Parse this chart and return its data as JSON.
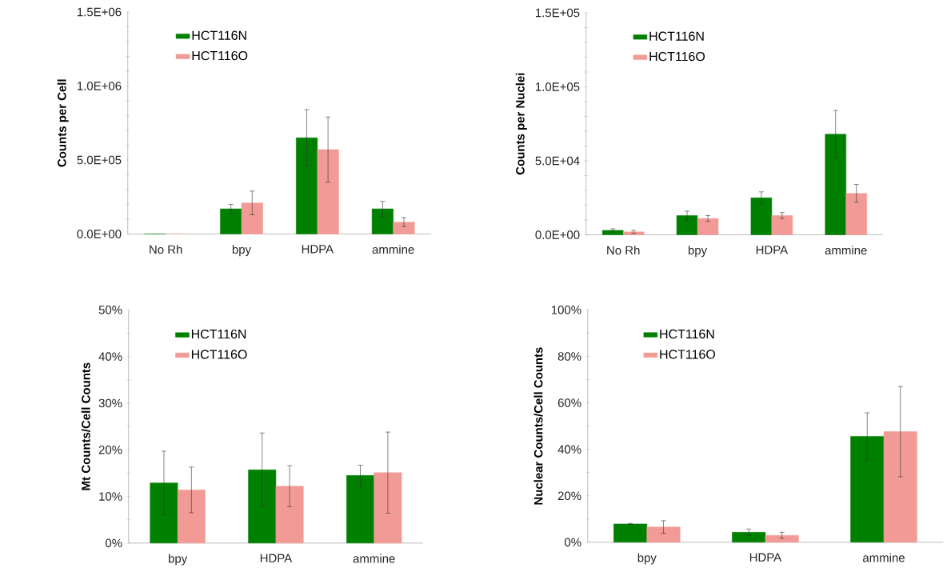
{
  "chart_data": [
    {
      "type": "bar",
      "ylabel": "Counts per Cell",
      "categories": [
        "No Rh",
        "bpy",
        "HDPA",
        "ammine"
      ],
      "series": [
        {
          "name": "HCT116N",
          "color": "#008000",
          "values": [
            0,
            170000,
            650000,
            170000
          ],
          "errors": [
            null,
            30000,
            190000,
            50000
          ]
        },
        {
          "name": "HCT116O",
          "color": "#f29b96",
          "values": [
            0,
            210000,
            570000,
            80000
          ],
          "errors": [
            null,
            80000,
            220000,
            30000
          ]
        }
      ],
      "ylim": [
        0,
        1500000
      ],
      "yticks": [
        {
          "value": 0,
          "label": "0.0E+00"
        },
        {
          "value": 100000,
          "label": null
        },
        {
          "value": 200000,
          "label": null
        },
        {
          "value": 300000,
          "label": null
        },
        {
          "value": 400000,
          "label": null
        },
        {
          "value": 500000,
          "label": "5.0E+05"
        },
        {
          "value": 600000,
          "label": null
        },
        {
          "value": 700000,
          "label": null
        },
        {
          "value": 800000,
          "label": null
        },
        {
          "value": 900000,
          "label": null
        },
        {
          "value": 1000000,
          "label": "1.0E+06"
        },
        {
          "value": 1100000,
          "label": null
        },
        {
          "value": 1200000,
          "label": null
        },
        {
          "value": 1300000,
          "label": null
        },
        {
          "value": 1400000,
          "label": null
        },
        {
          "value": 1500000,
          "label": "1.5E+06"
        }
      ],
      "legend": "top left"
    },
    {
      "type": "bar",
      "ylabel": "Counts per Nuclei",
      "categories": [
        "No Rh",
        "bpy",
        "HDPA",
        "ammine"
      ],
      "series": [
        {
          "name": "HCT116N",
          "color": "#008000",
          "values": [
            3000,
            13000,
            25000,
            68000
          ],
          "errors": [
            1000,
            3000,
            4000,
            16000
          ]
        },
        {
          "name": "HCT116O",
          "color": "#f29b96",
          "values": [
            2000,
            11000,
            13000,
            28000
          ],
          "errors": [
            1000,
            2000,
            2000,
            6000
          ]
        }
      ],
      "ylim": [
        0,
        150000
      ],
      "yticks": [
        {
          "value": 0,
          "label": "0.0E+00"
        },
        {
          "value": 10000,
          "label": null
        },
        {
          "value": 20000,
          "label": null
        },
        {
          "value": 30000,
          "label": null
        },
        {
          "value": 40000,
          "label": null
        },
        {
          "value": 50000,
          "label": "5.0E+04"
        },
        {
          "value": 60000,
          "label": null
        },
        {
          "value": 70000,
          "label": null
        },
        {
          "value": 80000,
          "label": null
        },
        {
          "value": 90000,
          "label": null
        },
        {
          "value": 100000,
          "label": "1.0E+05"
        },
        {
          "value": 110000,
          "label": null
        },
        {
          "value": 120000,
          "label": null
        },
        {
          "value": 130000,
          "label": null
        },
        {
          "value": 140000,
          "label": null
        },
        {
          "value": 150000,
          "label": "1.5E+05"
        }
      ],
      "legend": "top left"
    },
    {
      "type": "bar",
      "ylabel": "Mt Counts/Cell Counts",
      "categories": [
        "bpy",
        "HDPA",
        "ammine"
      ],
      "series": [
        {
          "name": "HCT116N",
          "color": "#008000",
          "values": [
            12.9,
            15.7,
            14.5
          ],
          "errors": [
            6.8,
            7.9,
            2.2
          ]
        },
        {
          "name": "HCT116O",
          "color": "#f29b96",
          "values": [
            11.4,
            12.2,
            15.1
          ],
          "errors": [
            4.9,
            4.4,
            8.7
          ]
        }
      ],
      "ylim": [
        0,
        50
      ],
      "yticks": [
        {
          "value": 0,
          "label": "0%"
        },
        {
          "value": 5,
          "label": null
        },
        {
          "value": 10,
          "label": "10%"
        },
        {
          "value": 15,
          "label": null
        },
        {
          "value": 20,
          "label": "20%"
        },
        {
          "value": 25,
          "label": null
        },
        {
          "value": 30,
          "label": "30%"
        },
        {
          "value": 35,
          "label": null
        },
        {
          "value": 40,
          "label": "40%"
        },
        {
          "value": 45,
          "label": null
        },
        {
          "value": 50,
          "label": "50%"
        }
      ],
      "legend": "top left"
    },
    {
      "type": "bar",
      "ylabel": "Nuclear Counts/Cell Counts",
      "categories": [
        "bpy",
        "HDPA",
        "ammine"
      ],
      "series": [
        {
          "name": "HCT116N",
          "color": "#008000",
          "values": [
            7.9,
            4.3,
            45.6
          ],
          "errors": [
            0.2,
            1.4,
            10.1
          ]
        },
        {
          "name": "HCT116O",
          "color": "#f29b96",
          "values": [
            6.6,
            3.0,
            47.6
          ],
          "errors": [
            2.7,
            1.3,
            19.4
          ]
        }
      ],
      "ylim": [
        0,
        100
      ],
      "yticks": [
        {
          "value": 0,
          "label": "0%"
        },
        {
          "value": 10,
          "label": null
        },
        {
          "value": 20,
          "label": "20%"
        },
        {
          "value": 30,
          "label": null
        },
        {
          "value": 40,
          "label": "40%"
        },
        {
          "value": 50,
          "label": null
        },
        {
          "value": 60,
          "label": "60%"
        },
        {
          "value": 70,
          "label": null
        },
        {
          "value": 80,
          "label": "80%"
        },
        {
          "value": 90,
          "label": null
        },
        {
          "value": 100,
          "label": "100%"
        }
      ],
      "legend": "top left"
    }
  ]
}
